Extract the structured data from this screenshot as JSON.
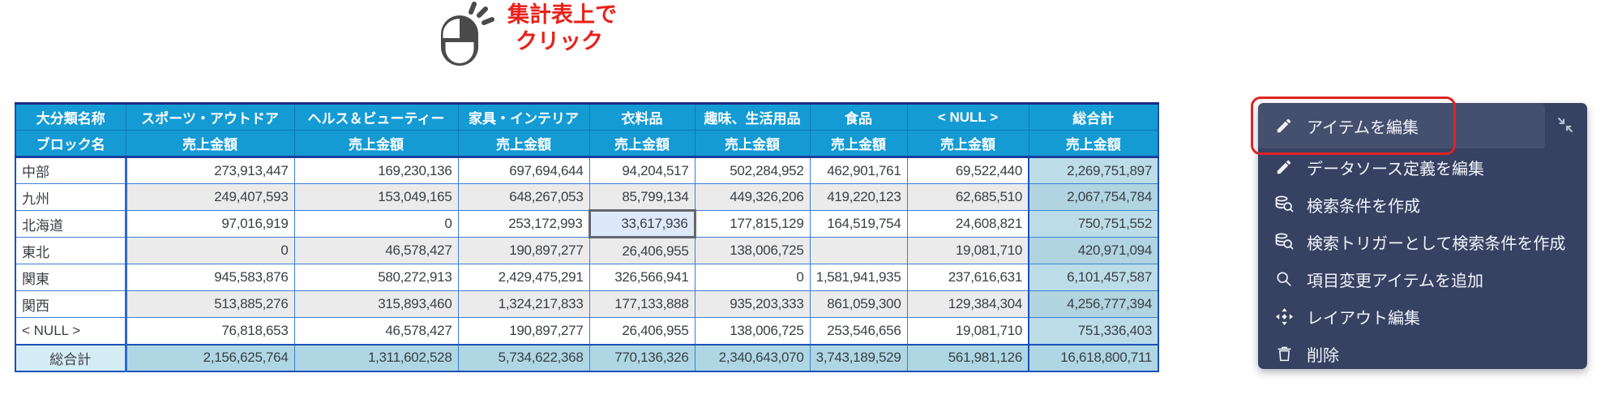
{
  "annotation": {
    "line1": "集計表上で",
    "line2": "クリック",
    "icon": "mouse-click-icon",
    "color": "#e8211a"
  },
  "table": {
    "corner_header": "大分類名称",
    "row_header_label": "ブロック名",
    "measure_label": "売上金額",
    "columns": [
      "スポーツ・アウトドア",
      "ヘルス＆ビューティー",
      "家具・インテリア",
      "衣料品",
      "趣味、生活用品",
      "食品",
      "< NULL >",
      "総合計"
    ],
    "rows": [
      {
        "label": "中部",
        "values": [
          "273,913,447",
          "169,230,136",
          "697,694,644",
          "94,204,517",
          "502,284,952",
          "462,901,761",
          "69,522,440",
          "2,269,751,897"
        ]
      },
      {
        "label": "九州",
        "values": [
          "249,407,593",
          "153,049,165",
          "648,267,053",
          "85,799,134",
          "449,326,206",
          "419,220,123",
          "62,685,510",
          "2,067,754,784"
        ]
      },
      {
        "label": "北海道",
        "values": [
          "97,016,919",
          "0",
          "253,172,993",
          "33,617,936",
          "177,815,129",
          "164,519,754",
          "24,608,821",
          "750,751,552"
        ]
      },
      {
        "label": "東北",
        "values": [
          "0",
          "46,578,427",
          "190,897,277",
          "26,406,955",
          "138,006,725",
          "",
          "19,081,710",
          "420,971,094"
        ]
      },
      {
        "label": "関東",
        "values": [
          "945,583,876",
          "580,272,913",
          "2,429,475,291",
          "326,566,941",
          "0",
          "1,581,941,935",
          "237,616,631",
          "6,101,457,587"
        ]
      },
      {
        "label": "関西",
        "values": [
          "513,885,276",
          "315,893,460",
          "1,324,217,833",
          "177,133,888",
          "935,203,333",
          "861,059,300",
          "129,384,304",
          "4,256,777,394"
        ]
      },
      {
        "label": "< NULL >",
        "values": [
          "76,818,653",
          "46,578,427",
          "190,897,277",
          "26,406,955",
          "138,006,725",
          "253,546,656",
          "19,081,710",
          "751,336,403"
        ]
      },
      {
        "label": "総合計",
        "values": [
          "2,156,625,764",
          "1,311,602,528",
          "5,734,622,368",
          "770,136,326",
          "2,340,643,070",
          "3,743,189,529",
          "561,981,126",
          "16,618,800,711"
        ],
        "is_total": true
      }
    ],
    "selected_cell": {
      "row_index": 2,
      "value_index": 3,
      "row": "北海道",
      "column": "衣料品",
      "value": "33,617,936"
    }
  },
  "context_menu": {
    "items": [
      {
        "name": "edit-item",
        "label": "アイテムを編集",
        "icon": "pencil-icon",
        "highlighted": true
      },
      {
        "name": "edit-datasource-definition",
        "label": "データソース定義を編集",
        "icon": "pencil-icon"
      },
      {
        "name": "create-search-condition",
        "label": "検索条件を作成",
        "icon": "database-search-icon"
      },
      {
        "name": "create-search-condition-as-trigger",
        "label": "検索トリガーとして検索条件を作成",
        "icon": "database-search-icon"
      },
      {
        "name": "add-field-change-item",
        "label": "項目変更アイテムを追加",
        "icon": "search-icon"
      },
      {
        "name": "edit-layout",
        "label": "レイアウト編集",
        "icon": "move-icon"
      },
      {
        "name": "delete",
        "label": "削除",
        "icon": "trash-icon"
      }
    ]
  },
  "colors": {
    "header_bg": "#149bd4",
    "grid_border": "#3b7fd6",
    "row_alt_bg": "#ebebeb",
    "total_col_bg": "#bcdde8",
    "total_row_bg": "#aed7e3",
    "total_row_label_bg": "#d4ecf4",
    "selected_cell_bg": "#dde9f9",
    "selected_cell_border": "#63676e",
    "menu_bg": "#374262",
    "menu_highlight_bg": "#454f6e",
    "annotation_red": "#e8211a"
  }
}
